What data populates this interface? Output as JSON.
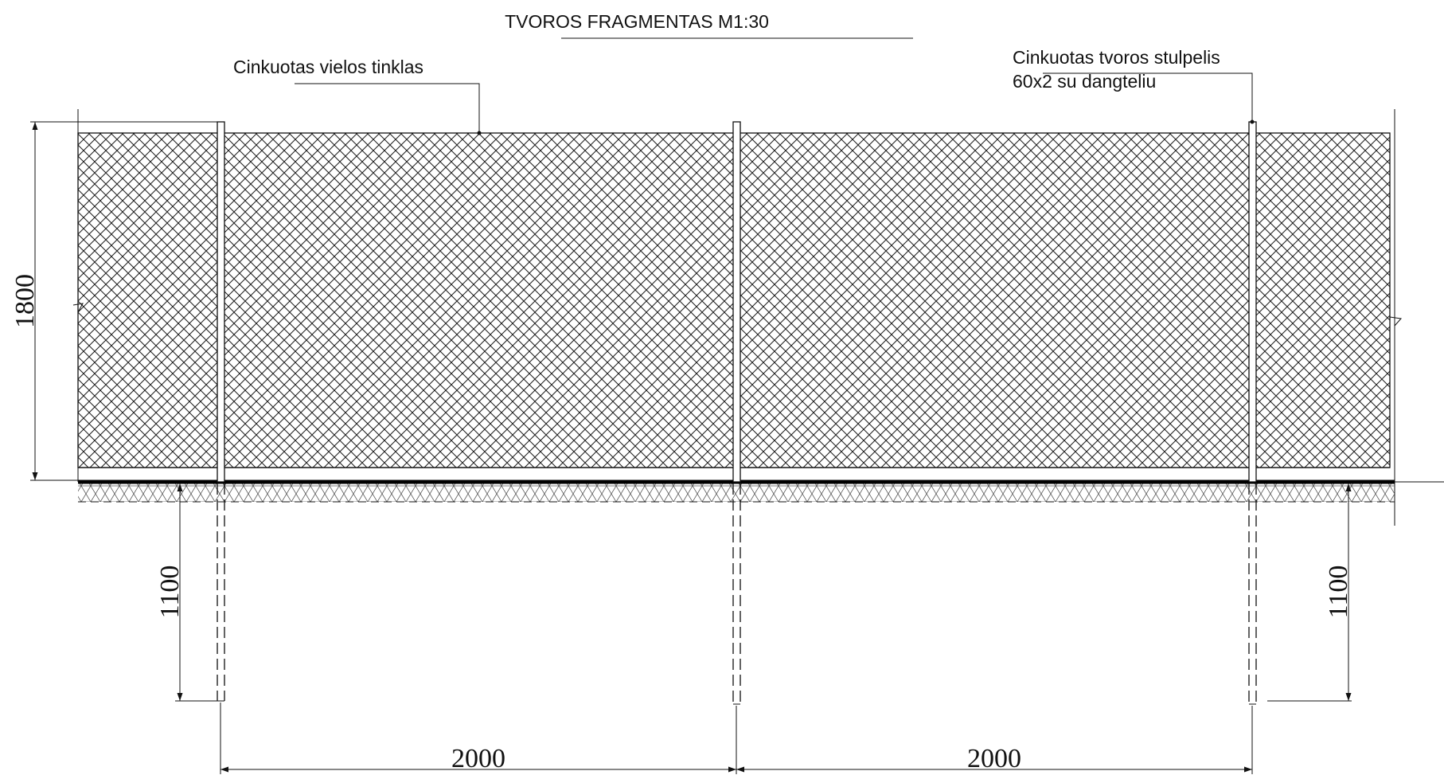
{
  "drawing": {
    "title": "TVOROS FRAGMENTAS M1:30",
    "callouts": {
      "mesh": "Cinkuotas vielos tinklas",
      "post_line1": "Cinkuotas tvoros stulpelis",
      "post_line2": "60x2 su dangteliu"
    },
    "dimensions": {
      "height": "1800",
      "depth_left": "1100",
      "depth_right": "1100",
      "span_left": "2000",
      "span_right": "2000"
    }
  }
}
